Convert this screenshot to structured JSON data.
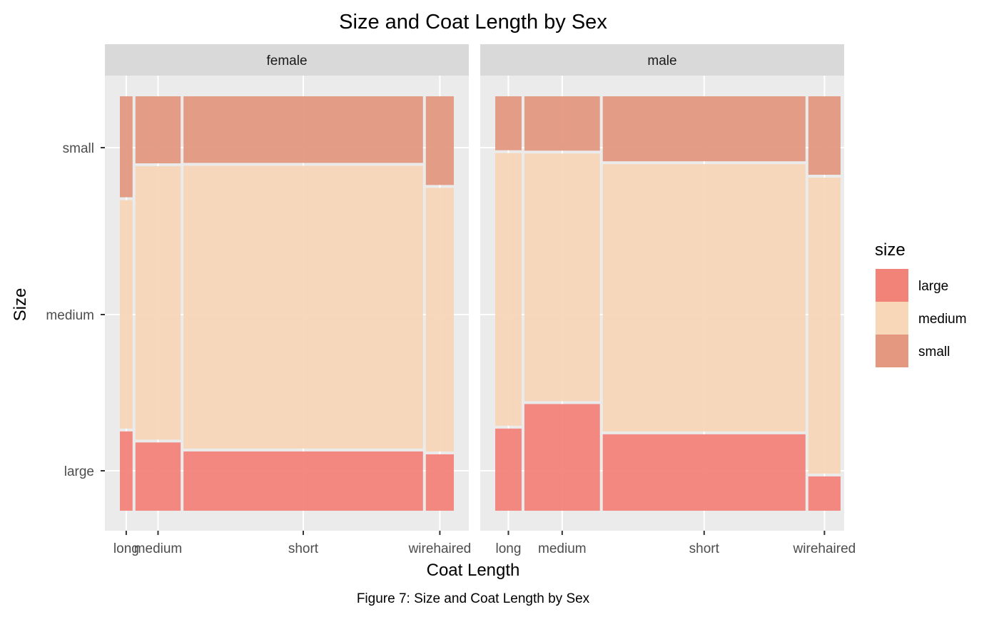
{
  "chart_data": {
    "type": "mosaic",
    "title": "Size and Coat Length by Sex",
    "caption": "Figure 7: Size and Coat Length by Sex",
    "xlabel": "Coat Length",
    "ylabel": "Size",
    "y_ticks": [
      "large",
      "medium",
      "small"
    ],
    "fill_order_bottom_to_top": [
      "large",
      "medium",
      "small"
    ],
    "legend": {
      "title": "size",
      "position": "right",
      "entries": [
        {
          "label": "large",
          "color": "#F28379"
        },
        {
          "label": "medium",
          "color": "#F8D6B8"
        },
        {
          "label": "small",
          "color": "#E3987F"
        }
      ]
    },
    "colors": {
      "large": "#F28379",
      "medium": "#F8D6B8",
      "small": "#E3987F",
      "panel_bg": "#EBEBEB",
      "strip_bg": "#D9D9D9",
      "grid": "#FFFFFF"
    },
    "panels": [
      {
        "label": "female",
        "categories": [
          "long",
          "medium",
          "short",
          "wirehaired"
        ],
        "widths": [
          0.039,
          0.139,
          0.736,
          0.086
        ],
        "proportions": {
          "large": [
            0.194,
            0.167,
            0.145,
            0.138
          ],
          "medium": [
            0.559,
            0.669,
            0.692,
            0.645
          ],
          "small": [
            0.247,
            0.164,
            0.163,
            0.217
          ]
        }
      },
      {
        "label": "male",
        "categories": [
          "long",
          "medium",
          "short",
          "wirehaired"
        ],
        "widths": [
          0.081,
          0.232,
          0.623,
          0.099
        ],
        "proportions": {
          "large": [
            0.201,
            0.261,
            0.187,
            0.084
          ],
          "medium": [
            0.667,
            0.606,
            0.654,
            0.724
          ],
          "small": [
            0.132,
            0.133,
            0.159,
            0.192
          ]
        }
      }
    ]
  }
}
